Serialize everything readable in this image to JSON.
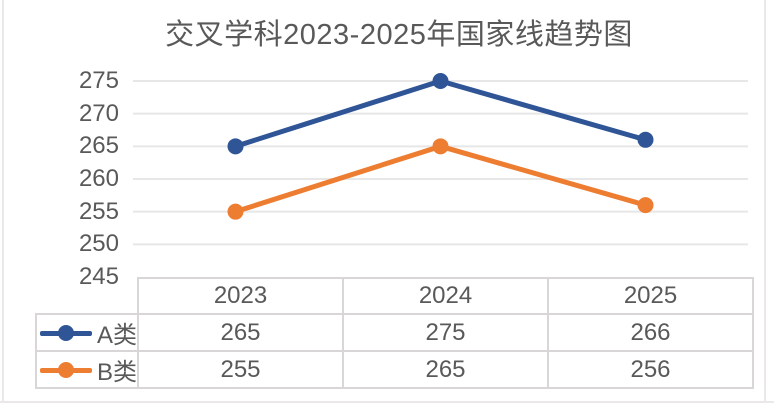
{
  "title": "交叉学科2023-2025年国家线趋势图",
  "chart_data": {
    "type": "line",
    "title": "交叉学科2023-2025年国家线趋势图",
    "categories": [
      "2023",
      "2024",
      "2025"
    ],
    "series": [
      {
        "name": "A类",
        "color": "#2F5597",
        "values": [
          265,
          275,
          266
        ]
      },
      {
        "name": "B类",
        "color": "#ED7D31",
        "values": [
          255,
          265,
          256
        ]
      }
    ],
    "xlabel": "",
    "ylabel": "",
    "ylim": [
      245,
      275
    ],
    "yticks": [
      245,
      250,
      255,
      260,
      265,
      270,
      275
    ],
    "grid": true,
    "marker": "circle",
    "legend_position": "data-table-left"
  },
  "colors": {
    "text": "#595959",
    "title": "#595959",
    "grid": "#E8E7E7",
    "border": "#D8D6D6",
    "bg": "#FFFFFF"
  }
}
